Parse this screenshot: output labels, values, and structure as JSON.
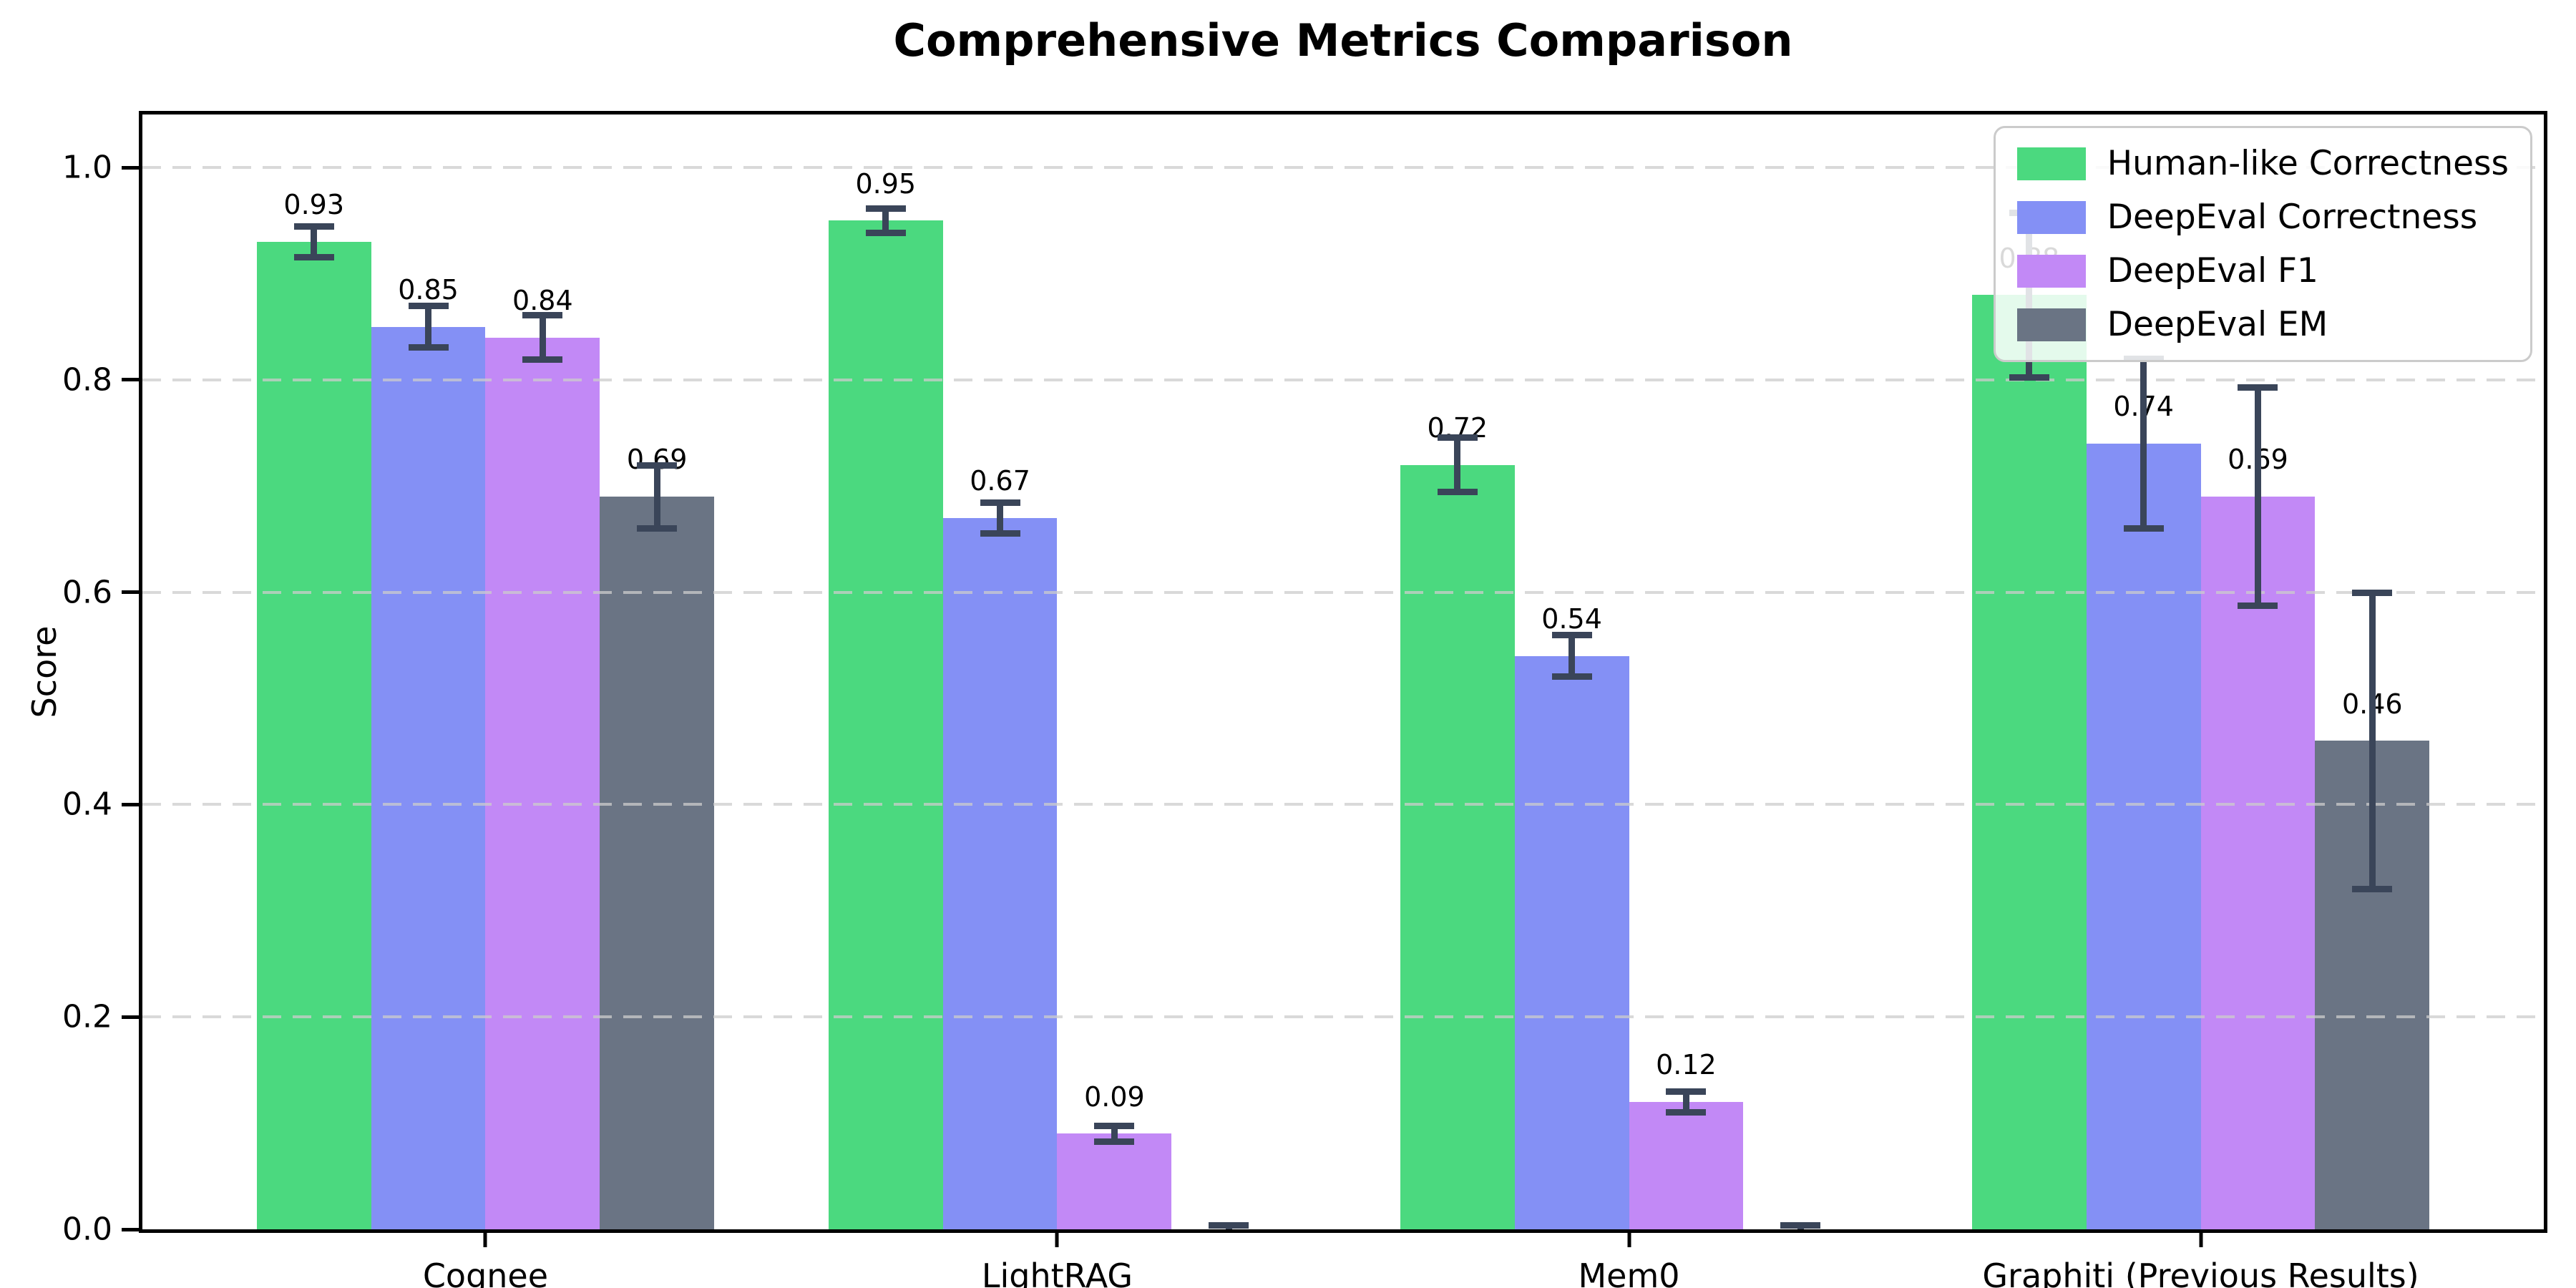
{
  "chart_data": {
    "type": "bar",
    "title": "Comprehensive Metrics Comparison",
    "xlabel": "",
    "ylabel": "Score",
    "categories": [
      "Cognee",
      "LightRAG",
      "Mem0",
      "Graphiti (Previous Results)"
    ],
    "series": [
      {
        "name": "Human-like Correctness",
        "color": "#4bd97f",
        "values": [
          0.93,
          0.95,
          0.72,
          0.88
        ],
        "errors": [
          0.015,
          0.012,
          0.026,
          0.078
        ],
        "labels": [
          "0.93",
          "0.95",
          "0.72",
          "0.88"
        ]
      },
      {
        "name": "DeepEval Correctness",
        "color": "#8490f5",
        "values": [
          0.85,
          0.67,
          0.54,
          0.74
        ],
        "errors": [
          0.02,
          0.015,
          0.02,
          0.08
        ],
        "labels": [
          "0.85",
          "0.67",
          "0.54",
          "0.74"
        ]
      },
      {
        "name": "DeepEval F1",
        "color": "#c289f6",
        "values": [
          0.84,
          0.09,
          0.12,
          0.69
        ],
        "errors": [
          0.021,
          0.008,
          0.01,
          0.103
        ],
        "labels": [
          "0.84",
          "0.09",
          "0.12",
          "0.69"
        ]
      },
      {
        "name": "DeepEval EM",
        "color": "#6a7484",
        "values": [
          0.69,
          0.0,
          0.0,
          0.46
        ],
        "errors": [
          0.03,
          0.004,
          0.004,
          0.14
        ],
        "labels": [
          "0.69",
          null,
          null,
          "0.46"
        ]
      }
    ],
    "yticks": [
      "0.0",
      "0.2",
      "0.4",
      "0.6",
      "0.8",
      "1.0"
    ],
    "ytick_values": [
      0.0,
      0.2,
      0.4,
      0.6,
      0.8,
      1.0
    ],
    "ylim": [
      0,
      1.05
    ],
    "grid": {
      "on": true,
      "style": "dashed",
      "color": "#cccccc",
      "opacity": 0.75
    },
    "error_bar_color": "#3a4559",
    "legend": {
      "position": "upper right"
    }
  }
}
